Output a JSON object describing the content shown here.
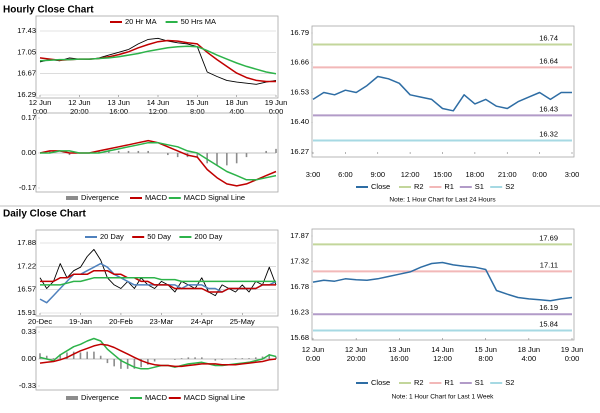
{
  "headings": [
    "Hourly Close Chart",
    "Daily Close Chart"
  ],
  "chart_data": [
    {
      "type": "line",
      "grid": true,
      "categories": [
        [
          "12 Jun",
          "0:00"
        ],
        null,
        null,
        null,
        [
          "12 Jun",
          "20:00"
        ],
        null,
        null,
        null,
        [
          "13 Jun",
          "16:00"
        ],
        null,
        null,
        null,
        [
          "14 Jun",
          "12:00"
        ],
        null,
        null,
        null,
        [
          "15 Jun",
          "8:00"
        ],
        null,
        null,
        null,
        [
          "18 Jun",
          "4:00"
        ],
        null,
        null,
        null,
        [
          "19 Jun",
          "0:00"
        ]
      ],
      "ylim": [
        16.29,
        17.43
      ],
      "yticks": [
        16.29,
        16.67,
        17.05,
        17.43
      ],
      "series": [
        {
          "color": "#000000",
          "values": [
            16.88,
            16.92,
            16.9,
            16.95,
            16.93,
            16.92,
            16.95,
            17.0,
            17.05,
            17.1,
            17.2,
            17.28,
            17.3,
            17.25,
            17.22,
            17.2,
            17.15,
            16.7,
            16.62,
            16.55,
            16.52,
            16.5,
            16.48,
            16.52,
            16.55
          ]
        },
        {
          "name": "20 Hr MA",
          "color": "#c00000",
          "values": [
            16.95,
            16.93,
            16.91,
            16.92,
            16.93,
            16.93,
            16.94,
            16.97,
            17.01,
            17.06,
            17.13,
            17.19,
            17.24,
            17.26,
            17.25,
            17.22,
            17.2,
            17.05,
            16.92,
            16.8,
            16.68,
            16.6,
            16.55,
            16.53,
            16.53
          ]
        },
        {
          "name": "50 Hrs MA",
          "color": "#2db34a",
          "values": [
            16.9,
            16.91,
            16.92,
            16.92,
            16.93,
            16.93,
            16.94,
            16.95,
            16.97,
            17.0,
            17.03,
            17.07,
            17.1,
            17.13,
            17.15,
            17.16,
            17.15,
            17.08,
            17.0,
            16.93,
            16.86,
            16.8,
            16.75,
            16.7,
            16.67
          ]
        }
      ]
    },
    {
      "type": "combo",
      "grid": false,
      "ylim": [
        -0.17,
        0.17
      ],
      "yticks": [
        0.17,
        {
          "value": 0,
          "label": "0.00"
        },
        -0.17
      ],
      "series": [
        {
          "name": "Divergence",
          "type": "bar",
          "color": "#8c8c8c",
          "values": [
            0,
            0.01,
            0,
            -0.01,
            0,
            0,
            0.01,
            0.01,
            0.01,
            0.01,
            0.01,
            0.01,
            0,
            -0.01,
            -0.02,
            -0.02,
            -0.02,
            -0.05,
            -0.06,
            -0.06,
            -0.05,
            -0.02,
            0,
            0.01,
            0.02
          ]
        },
        {
          "name": "MACD",
          "color": "#c00000",
          "values": [
            0.0,
            0.01,
            0.01,
            0.0,
            0.0,
            0.0,
            0.01,
            0.02,
            0.03,
            0.04,
            0.05,
            0.06,
            0.05,
            0.03,
            0.01,
            -0.01,
            -0.02,
            -0.08,
            -0.12,
            -0.15,
            -0.16,
            -0.15,
            -0.13,
            -0.11,
            -0.09
          ]
        },
        {
          "name": "MACD Signal Line",
          "color": "#2db34a",
          "values": [
            0.0,
            0.0,
            0.01,
            0.01,
            0.0,
            0.0,
            0.0,
            0.01,
            0.02,
            0.03,
            0.04,
            0.05,
            0.05,
            0.04,
            0.03,
            0.01,
            0.0,
            -0.03,
            -0.06,
            -0.09,
            -0.11,
            -0.13,
            -0.13,
            -0.12,
            -0.11
          ]
        }
      ]
    },
    {
      "type": "line",
      "grid": false,
      "categories": [
        "3:00",
        null,
        null,
        "6:00",
        null,
        null,
        "9:00",
        null,
        null,
        "12:00",
        null,
        null,
        "15:00",
        null,
        null,
        "18:00",
        null,
        null,
        "21:00",
        null,
        null,
        "0:00",
        null,
        null,
        "3:00"
      ],
      "ylim": [
        16.27,
        16.79
      ],
      "yticks": [
        16.27,
        {
          "value": 16.4,
          "label": "16.40"
        },
        16.53,
        16.66,
        16.79
      ],
      "series": [
        {
          "name": "Close",
          "color": "#2e6da4",
          "values": [
            16.5,
            16.53,
            16.52,
            16.54,
            16.53,
            16.56,
            16.6,
            16.59,
            16.57,
            16.52,
            16.51,
            16.5,
            16.46,
            16.45,
            16.52,
            16.48,
            16.5,
            16.47,
            16.46,
            16.49,
            16.51,
            16.53,
            16.5,
            16.53,
            16.53
          ]
        }
      ],
      "levels": [
        {
          "name": "R2",
          "value": 16.74,
          "color": "#c3d69b"
        },
        {
          "name": "R1",
          "value": 16.64,
          "color": "#f2b8b8"
        },
        {
          "name": "S1",
          "value": 16.43,
          "color": "#b29bc8"
        },
        {
          "name": "S2",
          "value": 16.32,
          "color": "#a6d9e3"
        }
      ],
      "note": "Note: 1 Hour Chart for Last 24 Hours"
    },
    {
      "type": "line",
      "grid": true,
      "categories": [
        "20-Dec",
        null,
        null,
        null,
        null,
        null,
        "19-Jan",
        null,
        null,
        null,
        null,
        null,
        "20-Feb",
        null,
        null,
        null,
        null,
        null,
        "23-Mar",
        null,
        null,
        null,
        null,
        null,
        "24-Apr",
        null,
        null,
        null,
        null,
        null,
        "25-May",
        null,
        null,
        null,
        null,
        null
      ],
      "ylim": [
        15.91,
        17.88
      ],
      "yticks": [
        15.91,
        16.57,
        17.22,
        17.88
      ],
      "series": [
        {
          "color": "#000000",
          "values": [
            16.9,
            16.6,
            16.8,
            17.3,
            16.9,
            17.1,
            17.2,
            17.5,
            17.7,
            17.4,
            16.9,
            16.7,
            16.6,
            16.8,
            16.6,
            16.9,
            16.7,
            16.6,
            16.8,
            16.7,
            16.5,
            16.8,
            16.7,
            16.6,
            16.9,
            16.5,
            16.4,
            16.7,
            16.6,
            16.5,
            16.7,
            16.5,
            16.8,
            16.7,
            17.2,
            16.7
          ]
        },
        {
          "name": "20 Day",
          "color": "#4f81bd",
          "values": [
            16.3,
            16.2,
            16.4,
            16.6,
            16.8,
            17.0,
            17.0,
            17.1,
            17.2,
            17.3,
            17.2,
            17.0,
            16.9,
            16.8,
            16.7,
            16.7,
            16.7,
            16.7,
            16.7,
            16.7,
            16.7,
            16.6,
            16.7,
            16.7,
            16.7,
            16.6,
            16.6,
            16.5,
            16.6,
            16.6,
            16.6,
            16.6,
            16.6,
            16.7,
            16.7,
            16.8
          ]
        },
        {
          "name": "50 Day",
          "color": "#c00000",
          "values": [
            16.8,
            16.8,
            16.8,
            16.9,
            16.9,
            17.0,
            17.0,
            17.0,
            17.1,
            17.1,
            17.1,
            17.0,
            17.0,
            16.9,
            16.9,
            16.8,
            16.8,
            16.7,
            16.7,
            16.7,
            16.6,
            16.6,
            16.6,
            16.6,
            16.6,
            16.5,
            16.5,
            16.5,
            16.6,
            16.6,
            16.6,
            16.6,
            16.6,
            16.7,
            16.7,
            16.7
          ]
        },
        {
          "name": "200 Day",
          "color": "#2db34a",
          "values": [
            16.7,
            16.7,
            16.7,
            16.7,
            16.75,
            16.8,
            16.8,
            16.85,
            16.9,
            16.9,
            16.9,
            16.9,
            16.9,
            16.9,
            16.9,
            16.9,
            16.9,
            16.9,
            16.85,
            16.85,
            16.85,
            16.8,
            16.8,
            16.8,
            16.8,
            16.8,
            16.8,
            16.8,
            16.8,
            16.8,
            16.8,
            16.8,
            16.8,
            16.8,
            16.8,
            16.8
          ]
        }
      ]
    },
    {
      "type": "combo",
      "grid": false,
      "ylim": [
        -0.33,
        0.33
      ],
      "yticks": [
        0.33,
        {
          "value": 0,
          "label": "0.00"
        },
        -0.33
      ],
      "series": [
        {
          "name": "Divergence",
          "type": "bar",
          "color": "#8c8c8c",
          "values": [
            0.07,
            0.04,
            0.01,
            0.06,
            0.08,
            0.09,
            0.08,
            0.09,
            0.09,
            0.04,
            -0.05,
            -0.09,
            -0.12,
            -0.12,
            -0.12,
            -0.1,
            -0.07,
            -0.03,
            0,
            0,
            -0.01,
            0.01,
            0.02,
            0.02,
            0.02,
            0,
            -0.02,
            -0.01,
            0,
            0.01,
            0.01,
            0.01,
            0.02,
            0.03,
            0.06,
            0.03
          ]
        },
        {
          "name": "MACD",
          "color": "#2db34a",
          "values": [
            0.02,
            0.0,
            -0.02,
            0.05,
            0.1,
            0.15,
            0.18,
            0.22,
            0.25,
            0.22,
            0.12,
            0.05,
            -0.02,
            -0.06,
            -0.1,
            -0.12,
            -0.12,
            -0.1,
            -0.08,
            -0.08,
            -0.1,
            -0.08,
            -0.06,
            -0.05,
            -0.04,
            -0.06,
            -0.08,
            -0.08,
            -0.07,
            -0.06,
            -0.05,
            -0.04,
            -0.02,
            0.0,
            0.05,
            0.03
          ]
        },
        {
          "name": "MACD Signal Line",
          "color": "#c00000",
          "values": [
            -0.05,
            -0.04,
            -0.03,
            -0.01,
            0.02,
            0.06,
            0.1,
            0.13,
            0.16,
            0.18,
            0.17,
            0.14,
            0.1,
            0.06,
            0.02,
            -0.02,
            -0.05,
            -0.07,
            -0.08,
            -0.08,
            -0.09,
            -0.09,
            -0.08,
            -0.07,
            -0.06,
            -0.06,
            -0.06,
            -0.07,
            -0.07,
            -0.07,
            -0.06,
            -0.05,
            -0.04,
            -0.03,
            -0.01,
            0.0
          ]
        }
      ]
    },
    {
      "type": "line",
      "grid": false,
      "categories": [
        [
          "12 Jun",
          "0:00"
        ],
        null,
        null,
        null,
        [
          "12 Jun",
          "20:00"
        ],
        null,
        null,
        null,
        [
          "13 Jun",
          "16:00"
        ],
        null,
        null,
        null,
        [
          "14 Jun",
          "12:00"
        ],
        null,
        null,
        null,
        [
          "15 Jun",
          "8:00"
        ],
        null,
        null,
        null,
        [
          "18 Jun",
          "4:00"
        ],
        null,
        null,
        null,
        [
          "19 Jun",
          "0:00"
        ]
      ],
      "ylim": [
        15.68,
        17.87
      ],
      "yticks": [
        15.68,
        16.23,
        16.78,
        17.32,
        17.87
      ],
      "series": [
        {
          "name": "Close",
          "color": "#2e6da4",
          "values": [
            16.88,
            16.92,
            16.9,
            16.95,
            16.93,
            16.92,
            16.95,
            17.0,
            17.05,
            17.1,
            17.2,
            17.28,
            17.3,
            17.25,
            17.22,
            17.2,
            17.15,
            16.7,
            16.62,
            16.55,
            16.52,
            16.5,
            16.48,
            16.52,
            16.55
          ]
        }
      ],
      "levels": [
        {
          "name": "R2",
          "value": 17.69,
          "color": "#c3d69b"
        },
        {
          "name": "R1",
          "value": 17.11,
          "color": "#f2b8b8"
        },
        {
          "name": "S1",
          "value": 16.19,
          "color": "#b29bc8"
        },
        {
          "name": "S2",
          "value": 15.84,
          "color": "#a6d9e3"
        }
      ],
      "note": "Note: 1 Hour Chart for Last 1 Week"
    }
  ]
}
